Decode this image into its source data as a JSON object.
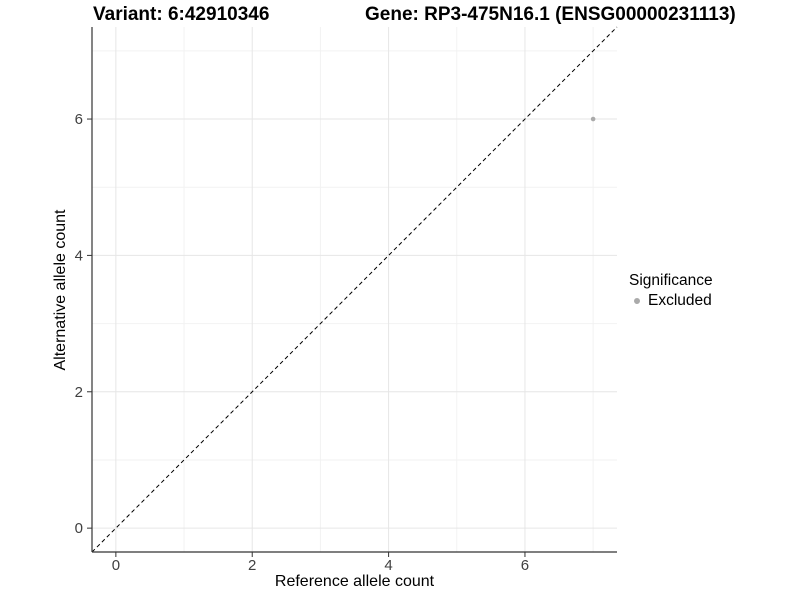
{
  "figure": {
    "title_left": "Variant: 6:42910346",
    "title_right": "Gene: RP3-475N16.1 (ENSG00000231113)",
    "background": "#ffffff"
  },
  "chart_data": {
    "type": "scatter",
    "title": "",
    "xlabel": "Reference allele count",
    "ylabel": "Alternative allele count",
    "xlim": [
      -0.35,
      7.35
    ],
    "ylim": [
      -0.35,
      7.35
    ],
    "x_ticks": [
      0,
      2,
      4,
      6
    ],
    "y_ticks": [
      0,
      2,
      4,
      6
    ],
    "x_minor_ticks": [
      1,
      3,
      5,
      7
    ],
    "y_minor_ticks": [
      1,
      3,
      5,
      7
    ],
    "grid": true,
    "reference_line": {
      "slope": 1,
      "intercept": 0,
      "style": "dashed",
      "color": "#000000"
    },
    "series": [
      {
        "name": "Excluded",
        "color": "#aaaaaa",
        "point_radius": 2.3,
        "points": [
          {
            "x": 7,
            "y": 6
          }
        ]
      }
    ],
    "legend": {
      "title": "Significance",
      "position": "right",
      "items": [
        {
          "label": "Excluded",
          "color": "#aaaaaa"
        }
      ]
    },
    "colors": {
      "grid_major": "#e6e6e6",
      "grid_minor": "#f2f2f2",
      "axis_line": "#333333",
      "tick_mark": "#333333",
      "tick_label": "#404040",
      "axis_title": "#000000",
      "title": "#000000"
    }
  }
}
